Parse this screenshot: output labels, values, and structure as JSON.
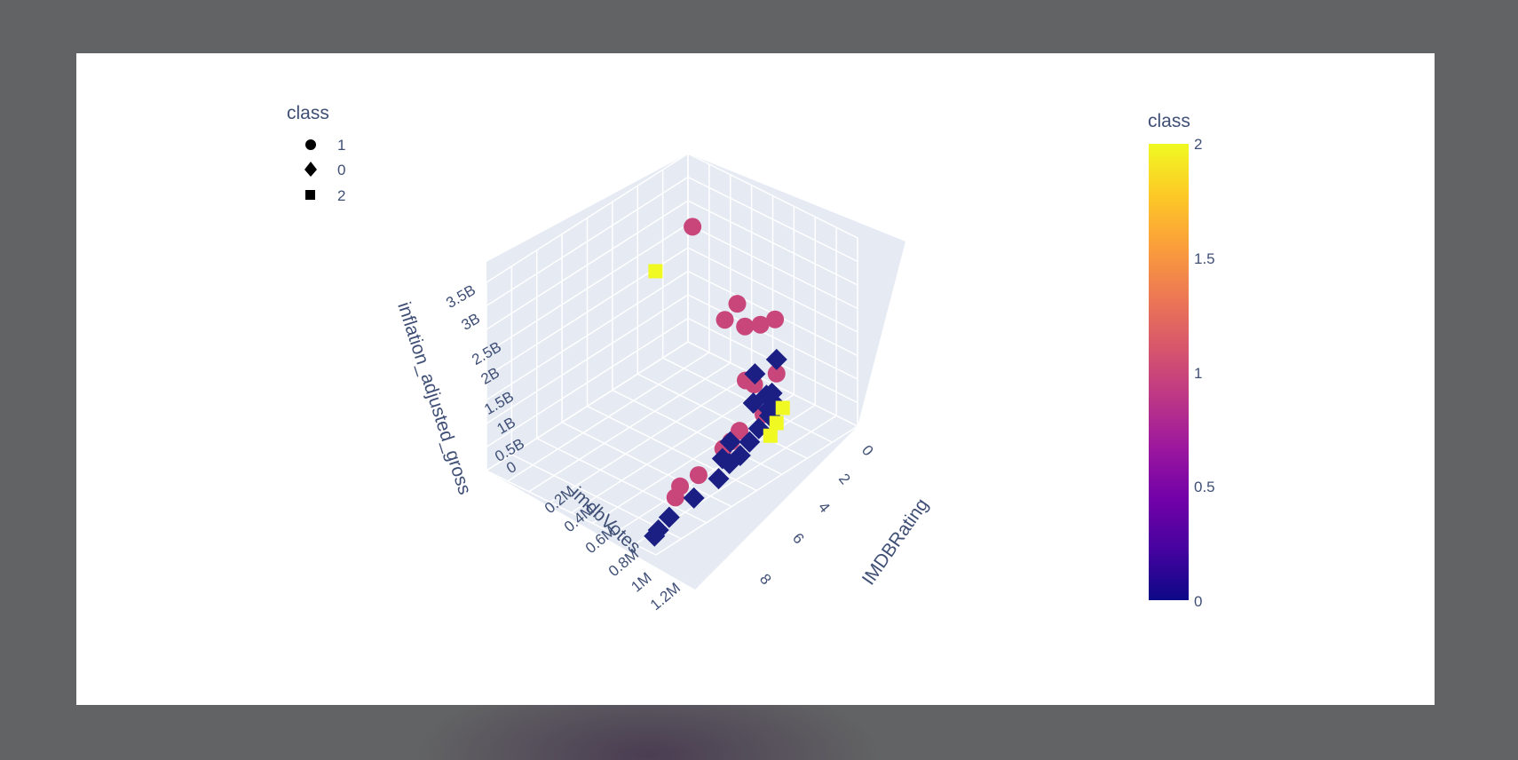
{
  "chart_data": {
    "type": "scatter",
    "subtype": "scatter3d",
    "x_axis": {
      "title": "IMDBRating",
      "ticks": [
        "0",
        "2",
        "4",
        "6",
        "8"
      ]
    },
    "y_axis": {
      "title": "imdbVotes",
      "ticks": [
        "0.2M",
        "0.4M",
        "0.6M",
        "0.8M",
        "1M",
        "1.2M"
      ]
    },
    "z_axis": {
      "title": "inflation_adjusted_gross",
      "ticks": [
        "0",
        "0.5B",
        "1B",
        "1.5B",
        "2B",
        "2.5B",
        "3B",
        "3.5B"
      ]
    },
    "legend": {
      "title": "class",
      "position": "top-left",
      "entries": [
        {
          "label": "1",
          "symbol": "circle"
        },
        {
          "label": "0",
          "symbol": "diamond"
        },
        {
          "label": "2",
          "symbol": "square"
        }
      ]
    },
    "colorbar": {
      "title": "class",
      "ticks": [
        "0",
        "0.5",
        "1",
        "1.5",
        "2"
      ],
      "range": [
        0,
        2
      ],
      "colors": [
        "#0d0887",
        "#46039f",
        "#7201a8",
        "#9c179e",
        "#bd3786",
        "#d8576b",
        "#ed7953",
        "#fb9f3a",
        "#fdca26",
        "#f0f921"
      ]
    },
    "series": [
      {
        "name": "1",
        "symbol": "circle",
        "color": "#c9467a",
        "points": [
          [
            2.0,
            0.2,
            3.5
          ],
          [
            6.0,
            0.05,
            1.9
          ],
          [
            4.5,
            0.1,
            1.6
          ],
          [
            5.5,
            0.1,
            1.8
          ],
          [
            4.0,
            0.1,
            2.0
          ],
          [
            5.0,
            0.3,
            2.2
          ],
          [
            7.0,
            0.15,
            1.1
          ],
          [
            7.5,
            0.3,
            0.6
          ],
          [
            7.2,
            0.5,
            0.35
          ],
          [
            7.6,
            0.6,
            0.45
          ],
          [
            7.8,
            0.8,
            0.3
          ],
          [
            7.5,
            0.9,
            0.2
          ],
          [
            8.1,
            1.0,
            0.25
          ],
          [
            6.0,
            0.2,
            0.8
          ],
          [
            6.8,
            0.35,
            1.3
          ],
          [
            7.3,
            0.45,
            0.5
          ]
        ]
      },
      {
        "name": "0",
        "symbol": "diamond",
        "color": "#1b1f83",
        "points": [
          [
            6.0,
            0.05,
            0.1
          ],
          [
            6.5,
            0.1,
            0.2
          ],
          [
            7.0,
            0.2,
            0.3
          ],
          [
            7.2,
            0.3,
            0.25
          ],
          [
            7.5,
            0.4,
            0.2
          ],
          [
            7.8,
            0.5,
            0.15
          ],
          [
            8.0,
            0.6,
            0.2
          ],
          [
            8.2,
            0.7,
            0.1
          ],
          [
            8.4,
            0.9,
            0.1
          ],
          [
            8.6,
            1.1,
            0.1
          ],
          [
            8.8,
            1.2,
            0.05
          ],
          [
            9.0,
            1.25,
            0.05
          ],
          [
            7.0,
            0.15,
            1.4
          ],
          [
            6.5,
            0.25,
            1.2
          ],
          [
            7.3,
            0.35,
            0.9
          ],
          [
            6.8,
            0.2,
            0.7
          ],
          [
            7.6,
            0.55,
            0.5
          ],
          [
            8.0,
            0.65,
            0.4
          ],
          [
            5.8,
            0.05,
            0.3
          ],
          [
            7.4,
            0.25,
            0.6
          ]
        ]
      },
      {
        "name": "2",
        "symbol": "square",
        "color": "#f0f921",
        "points": [
          [
            0.5,
            0.3,
            2.5
          ],
          [
            6.5,
            0.05,
            0.1
          ],
          [
            7.0,
            0.15,
            0.05
          ],
          [
            7.5,
            0.25,
            0.05
          ]
        ]
      }
    ]
  }
}
